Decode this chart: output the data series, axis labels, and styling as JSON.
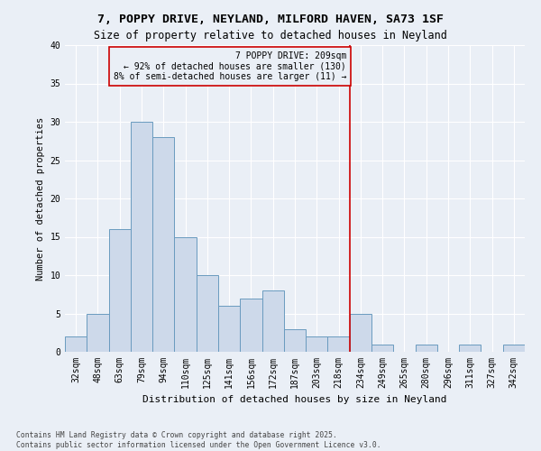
{
  "title1": "7, POPPY DRIVE, NEYLAND, MILFORD HAVEN, SA73 1SF",
  "title2": "Size of property relative to detached houses in Neyland",
  "xlabel": "Distribution of detached houses by size in Neyland",
  "ylabel": "Number of detached properties",
  "bar_labels": [
    "32sqm",
    "48sqm",
    "63sqm",
    "79sqm",
    "94sqm",
    "110sqm",
    "125sqm",
    "141sqm",
    "156sqm",
    "172sqm",
    "187sqm",
    "203sqm",
    "218sqm",
    "234sqm",
    "249sqm",
    "265sqm",
    "280sqm",
    "296sqm",
    "311sqm",
    "327sqm",
    "342sqm"
  ],
  "bar_values": [
    2,
    5,
    16,
    30,
    28,
    15,
    10,
    6,
    7,
    8,
    3,
    2,
    2,
    5,
    1,
    0,
    1,
    0,
    1,
    0,
    1
  ],
  "bar_color": "#cdd9ea",
  "bar_edge_color": "#6a9bbf",
  "vline_x": 12.5,
  "vline_color": "#cc0000",
  "annotation_title": "7 POPPY DRIVE: 209sqm",
  "annotation_line1": "← 92% of detached houses are smaller (130)",
  "annotation_line2": "8% of semi-detached houses are larger (11) →",
  "annotation_box_color": "#cc0000",
  "ylim": [
    0,
    40
  ],
  "yticks": [
    0,
    5,
    10,
    15,
    20,
    25,
    30,
    35,
    40
  ],
  "footnote": "Contains HM Land Registry data © Crown copyright and database right 2025.\nContains public sector information licensed under the Open Government Licence v3.0.",
  "bg_color": "#eaeff6",
  "grid_color": "#ffffff",
  "title_fontsize": 9.5,
  "subtitle_fontsize": 8.5,
  "annotation_fontsize": 7.0,
  "tick_fontsize": 7.0,
  "ylabel_fontsize": 7.5,
  "xlabel_fontsize": 8.0,
  "footnote_fontsize": 5.8
}
